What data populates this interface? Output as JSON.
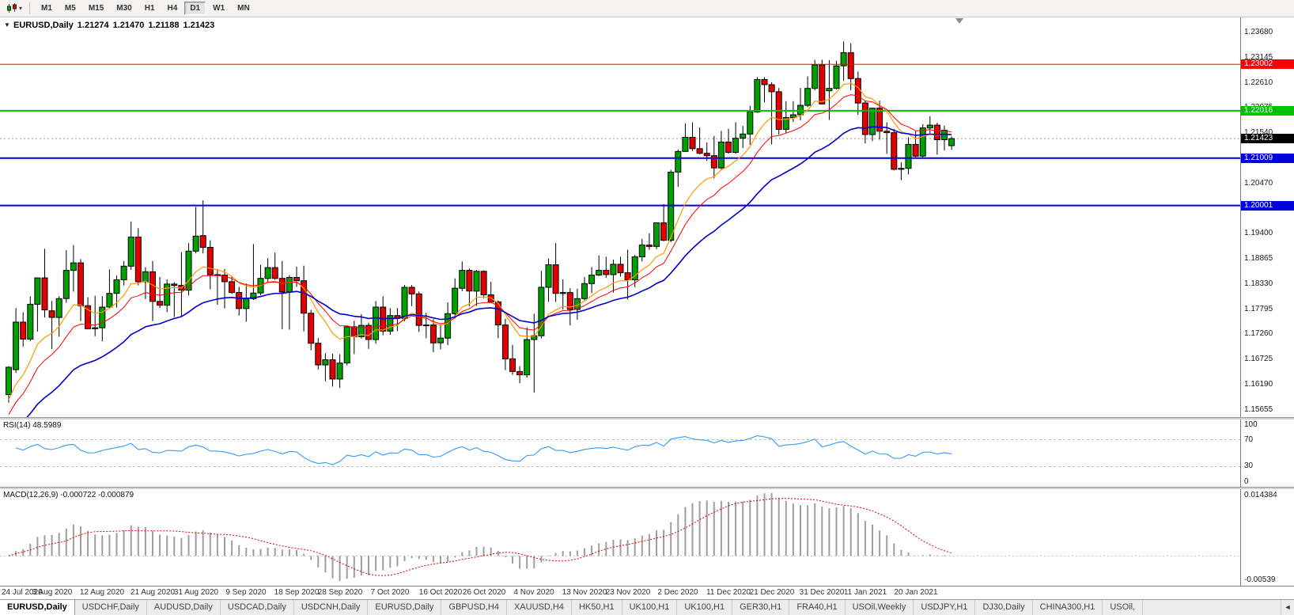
{
  "icons": {
    "one_click": "▼",
    "dropdown": "▾",
    "tab_scroll": "◄"
  },
  "toolbar": {
    "timeframes": [
      "M1",
      "M5",
      "M15",
      "M30",
      "H1",
      "H4",
      "D1",
      "W1",
      "MN"
    ],
    "active_timeframe": "D1"
  },
  "tabs": {
    "items": [
      "EURUSD,Daily",
      "USDCHF,Daily",
      "AUDUSD,Daily",
      "USDCAD,Daily",
      "USDCNH,Daily",
      "EURUSD,Daily",
      "GBPUSD,H4",
      "XAUUSD,H4",
      "HK50,H1",
      "UK100,H1",
      "UK100,H1",
      "GER30,H1",
      "FRA40,H1",
      "USOil,Weekly",
      "USDJPY,H1",
      "DJ30,Daily",
      "CHINA300,H1",
      "USOil,"
    ],
    "active_index": 0
  },
  "chart_data": {
    "type": "candlestick",
    "symbol": "EURUSD",
    "timeframe": "Daily",
    "title": {
      "symbol": "EURUSD,Daily",
      "open": "1.21274",
      "high": "1.21470",
      "low": "1.21188",
      "close": "1.21423"
    },
    "colors": {
      "up": "#00A000",
      "down": "#E30000",
      "outline": "#000000"
    },
    "price_axis": {
      "min": 1.155,
      "max": 1.24,
      "ticks": [
        "1.23680",
        "1.23145",
        "1.22610",
        "1.22075",
        "1.21540",
        "1.21005",
        "1.20470",
        "1.19935",
        "1.19400",
        "1.18865",
        "1.18330",
        "1.17795",
        "1.17260",
        "1.16725",
        "1.16190",
        "1.15655"
      ]
    },
    "hlines": [
      {
        "name": "resistance-upper",
        "price": 1.23002,
        "label": "1.23002",
        "color": "#FF0000",
        "width": 1
      },
      {
        "name": "resistance-lower",
        "price": 1.22016,
        "label": "1.22016",
        "color": "#00C000",
        "width": 2
      },
      {
        "name": "support-upper",
        "price": 1.21009,
        "label": "1.21009",
        "color": "#0000D8",
        "width": 2
      },
      {
        "name": "support-lower",
        "price": 1.20001,
        "label": "1.20001",
        "color": "#0000D8",
        "width": 2
      }
    ],
    "bid": {
      "price": 1.21423,
      "label": "1.21423",
      "label_bg": "#000000"
    },
    "x_labels": [
      [
        0,
        "24 Jul 2020"
      ],
      [
        6,
        "3 Aug 2020"
      ],
      [
        13,
        "12 Aug 2020"
      ],
      [
        20,
        "21 Aug 2020"
      ],
      [
        26,
        "31 Aug 2020"
      ],
      [
        33,
        "9 Sep 2020"
      ],
      [
        40,
        "18 Sep 2020"
      ],
      [
        46,
        "28 Sep 2020"
      ],
      [
        53,
        "7 Oct 2020"
      ],
      [
        60,
        "16 Oct 2020"
      ],
      [
        66,
        "26 Oct 2020"
      ],
      [
        73,
        "4 Nov 2020"
      ],
      [
        80,
        "13 Nov 2020"
      ],
      [
        86,
        "23 Nov 2020"
      ],
      [
        93,
        "2 Dec 2020"
      ],
      [
        100,
        "11 Dec 2020"
      ],
      [
        106,
        "21 Dec 2020"
      ],
      [
        113,
        "31 Dec 2020"
      ],
      [
        119,
        "11 Jan 2021"
      ],
      [
        126,
        "20 Jan 2021"
      ]
    ],
    "candles": [
      [
        1.1598,
        1.1658,
        1.1581,
        1.1656
      ],
      [
        1.1651,
        1.1782,
        1.1644,
        1.1752
      ],
      [
        1.1752,
        1.1773,
        1.17,
        1.1716
      ],
      [
        1.1716,
        1.1807,
        1.1712,
        1.179
      ],
      [
        1.179,
        1.1847,
        1.1732,
        1.1846
      ],
      [
        1.1846,
        1.1908,
        1.1762,
        1.1778
      ],
      [
        1.1776,
        1.1797,
        1.1695,
        1.1762
      ],
      [
        1.1762,
        1.1807,
        1.1721,
        1.1802
      ],
      [
        1.1802,
        1.1905,
        1.1793,
        1.1862
      ],
      [
        1.1862,
        1.1916,
        1.1817,
        1.1878
      ],
      [
        1.1878,
        1.1886,
        1.1754,
        1.1787
      ],
      [
        1.1787,
        1.1805,
        1.1737,
        1.1738
      ],
      [
        1.1738,
        1.1808,
        1.1722,
        1.174
      ],
      [
        1.174,
        1.1807,
        1.1711,
        1.1784
      ],
      [
        1.1784,
        1.1864,
        1.1782,
        1.1813
      ],
      [
        1.1813,
        1.1851,
        1.1783,
        1.1842
      ],
      [
        1.1842,
        1.1882,
        1.183,
        1.1871
      ],
      [
        1.1871,
        1.1966,
        1.1863,
        1.1933
      ],
      [
        1.1933,
        1.1952,
        1.183,
        1.1838
      ],
      [
        1.1838,
        1.1869,
        1.1801,
        1.1859
      ],
      [
        1.1859,
        1.1882,
        1.1754,
        1.1796
      ],
      [
        1.1796,
        1.1848,
        1.1782,
        1.1788
      ],
      [
        1.1788,
        1.1843,
        1.1773,
        1.1833
      ],
      [
        1.1833,
        1.1837,
        1.1763,
        1.183
      ],
      [
        1.183,
        1.1901,
        1.1763,
        1.182
      ],
      [
        1.182,
        1.192,
        1.1809,
        1.1903
      ],
      [
        1.1903,
        1.1997,
        1.1898,
        1.1935
      ],
      [
        1.1936,
        1.2011,
        1.1898,
        1.1911
      ],
      [
        1.1911,
        1.1926,
        1.1822,
        1.1853
      ],
      [
        1.1853,
        1.1865,
        1.1789,
        1.1852
      ],
      [
        1.1852,
        1.1865,
        1.1781,
        1.1838
      ],
      [
        1.1838,
        1.1849,
        1.1812,
        1.1815
      ],
      [
        1.1815,
        1.1827,
        1.1766,
        1.1781
      ],
      [
        1.1781,
        1.1834,
        1.1753,
        1.1802
      ],
      [
        1.1802,
        1.1918,
        1.1799,
        1.1814
      ],
      [
        1.1814,
        1.1874,
        1.1809,
        1.1845
      ],
      [
        1.1845,
        1.1888,
        1.1835,
        1.1868
      ],
      [
        1.1868,
        1.19,
        1.1842,
        1.1845
      ],
      [
        1.1845,
        1.1882,
        1.1737,
        1.1816
      ],
      [
        1.1816,
        1.1852,
        1.1736,
        1.1847
      ],
      [
        1.1847,
        1.187,
        1.1827,
        1.184
      ],
      [
        1.184,
        1.1872,
        1.1732,
        1.1771
      ],
      [
        1.1771,
        1.1778,
        1.1692,
        1.1707
      ],
      [
        1.1707,
        1.1718,
        1.1651,
        1.1661
      ],
      [
        1.1661,
        1.1686,
        1.1626,
        1.1672
      ],
      [
        1.1672,
        1.1685,
        1.1615,
        1.1631
      ],
      [
        1.1631,
        1.1684,
        1.1612,
        1.1665
      ],
      [
        1.1665,
        1.1745,
        1.166,
        1.1742
      ],
      [
        1.1742,
        1.1755,
        1.1684,
        1.1721
      ],
      [
        1.1721,
        1.1769,
        1.1717,
        1.1745
      ],
      [
        1.1745,
        1.1751,
        1.1695,
        1.1715
      ],
      [
        1.1715,
        1.1797,
        1.1706,
        1.1784
      ],
      [
        1.1784,
        1.1807,
        1.1724,
        1.1733
      ],
      [
        1.1733,
        1.1782,
        1.1725,
        1.1766
      ],
      [
        1.1766,
        1.1782,
        1.1733,
        1.176
      ],
      [
        1.176,
        1.1831,
        1.1754,
        1.1826
      ],
      [
        1.1826,
        1.1831,
        1.1786,
        1.1812
      ],
      [
        1.1812,
        1.1817,
        1.1731,
        1.1745
      ],
      [
        1.1745,
        1.1772,
        1.1718,
        1.1746
      ],
      [
        1.1746,
        1.1758,
        1.1688,
        1.1708
      ],
      [
        1.1708,
        1.1747,
        1.1694,
        1.1718
      ],
      [
        1.1718,
        1.1794,
        1.1703,
        1.177
      ],
      [
        1.177,
        1.1845,
        1.176,
        1.1824
      ],
      [
        1.1824,
        1.1881,
        1.1818,
        1.1862
      ],
      [
        1.1862,
        1.1866,
        1.1786,
        1.1818
      ],
      [
        1.1818,
        1.1863,
        1.1787,
        1.186
      ],
      [
        1.186,
        1.1862,
        1.1803,
        1.181
      ],
      [
        1.181,
        1.1838,
        1.1793,
        1.1795
      ],
      [
        1.1795,
        1.1798,
        1.1718,
        1.1746
      ],
      [
        1.1746,
        1.1759,
        1.165,
        1.1674
      ],
      [
        1.1674,
        1.1704,
        1.164,
        1.1647
      ],
      [
        1.1647,
        1.1658,
        1.1622,
        1.164
      ],
      [
        1.164,
        1.1741,
        1.1634,
        1.1715
      ],
      [
        1.1715,
        1.177,
        1.1602,
        1.1723
      ],
      [
        1.1723,
        1.1861,
        1.1717,
        1.1826
      ],
      [
        1.1826,
        1.1887,
        1.1795,
        1.1874
      ],
      [
        1.1874,
        1.192,
        1.1795,
        1.1813
      ],
      [
        1.1813,
        1.1843,
        1.1779,
        1.1815
      ],
      [
        1.1815,
        1.1824,
        1.1745,
        1.1779
      ],
      [
        1.1779,
        1.1823,
        1.1757,
        1.1802
      ],
      [
        1.1802,
        1.1848,
        1.1799,
        1.1834
      ],
      [
        1.1834,
        1.1869,
        1.1814,
        1.1852
      ],
      [
        1.1852,
        1.1894,
        1.185,
        1.1862
      ],
      [
        1.1862,
        1.1891,
        1.1846,
        1.1853
      ],
      [
        1.1853,
        1.1885,
        1.1815,
        1.1875
      ],
      [
        1.1875,
        1.1891,
        1.1849,
        1.1857
      ],
      [
        1.1857,
        1.1906,
        1.18,
        1.1842
      ],
      [
        1.1842,
        1.1895,
        1.1826,
        1.1891
      ],
      [
        1.1891,
        1.1929,
        1.1881,
        1.1916
      ],
      [
        1.1916,
        1.1941,
        1.1906,
        1.1913
      ],
      [
        1.1913,
        1.1963,
        1.1907,
        1.1963
      ],
      [
        1.1963,
        1.2003,
        1.1924,
        1.1926
      ],
      [
        1.1926,
        1.2076,
        1.1922,
        1.2071
      ],
      [
        1.2071,
        1.2119,
        1.204,
        1.2115
      ],
      [
        1.2115,
        1.2175,
        1.2114,
        1.2145
      ],
      [
        1.2145,
        1.2177,
        1.2116,
        1.2121
      ],
      [
        1.2121,
        1.2166,
        1.2109,
        1.2111
      ],
      [
        1.2111,
        1.2134,
        1.2095,
        1.2106
      ],
      [
        1.2106,
        1.2148,
        1.2058,
        1.208
      ],
      [
        1.208,
        1.2159,
        1.2076,
        1.2135
      ],
      [
        1.2135,
        1.2163,
        1.211,
        1.2113
      ],
      [
        1.2113,
        1.2177,
        1.211,
        1.2143
      ],
      [
        1.2143,
        1.2169,
        1.2122,
        1.2152
      ],
      [
        1.2152,
        1.2212,
        1.2129,
        1.2199
      ],
      [
        1.2199,
        1.2273,
        1.2197,
        1.2268
      ],
      [
        1.2268,
        1.2273,
        1.2219,
        1.2257
      ],
      [
        1.2257,
        1.2262,
        1.213,
        1.2242
      ],
      [
        1.2242,
        1.225,
        1.2151,
        1.2162
      ],
      [
        1.2162,
        1.2222,
        1.2154,
        1.2187
      ],
      [
        1.2187,
        1.2222,
        1.2178,
        1.2193
      ],
      [
        1.2193,
        1.225,
        1.2181,
        1.2213
      ],
      [
        1.2213,
        1.2275,
        1.2209,
        1.2249
      ],
      [
        1.2249,
        1.231,
        1.2245,
        1.2299
      ],
      [
        1.2299,
        1.231,
        1.2215,
        1.2216
      ],
      [
        1.2244,
        1.2309,
        1.2182,
        1.2249
      ],
      [
        1.2249,
        1.2308,
        1.2247,
        1.2297
      ],
      [
        1.2297,
        1.2349,
        1.2265,
        1.2325
      ],
      [
        1.2325,
        1.2345,
        1.2245,
        1.227
      ],
      [
        1.227,
        1.2285,
        1.2193,
        1.2218
      ],
      [
        1.2218,
        1.2223,
        1.2132,
        1.2151
      ],
      [
        1.2151,
        1.2208,
        1.2137,
        1.2207
      ],
      [
        1.2207,
        1.2223,
        1.214,
        1.2158
      ],
      [
        1.2158,
        1.2177,
        1.211,
        1.2155
      ],
      [
        1.2155,
        1.2163,
        1.2075,
        1.2077
      ],
      [
        1.2077,
        1.2092,
        1.2054,
        1.2079
      ],
      [
        1.2079,
        1.2145,
        1.2066,
        1.213
      ],
      [
        1.213,
        1.2158,
        1.2101,
        1.2105
      ],
      [
        1.2105,
        1.2173,
        1.2102,
        1.2165
      ],
      [
        1.2165,
        1.219,
        1.2151,
        1.2171
      ],
      [
        1.2171,
        1.2176,
        1.2108,
        1.214
      ],
      [
        1.214,
        1.217,
        1.2117,
        1.216
      ],
      [
        1.21274,
        1.2147,
        1.21188,
        1.21423
      ]
    ],
    "moving_averages": [
      {
        "name": "fast",
        "period": 9,
        "seed": 1.157,
        "color": "#FF9900",
        "width": 1.2
      },
      {
        "name": "mid",
        "period": 14,
        "seed": 1.154,
        "color": "#FF0000",
        "width": 1
      },
      {
        "name": "slow",
        "period": 28,
        "seed": 1.15,
        "color": "#0000CC",
        "width": 1.6
      }
    ],
    "rsi": {
      "label": "RSI(14) 48.5989",
      "period": 14,
      "color": "#3399FF",
      "levels": [
        70,
        30
      ],
      "axis_labels": [
        "100",
        "70",
        "30",
        "0"
      ]
    },
    "macd": {
      "label": "MACD(12,26,9) -0.000722 -0.000879",
      "fast": 12,
      "slow": 26,
      "signal": 9,
      "histogram_color": "#9e9e9e",
      "signal_color": "#E00000",
      "axis_top": "0.014384",
      "axis_bottom": "-0.00539"
    }
  }
}
